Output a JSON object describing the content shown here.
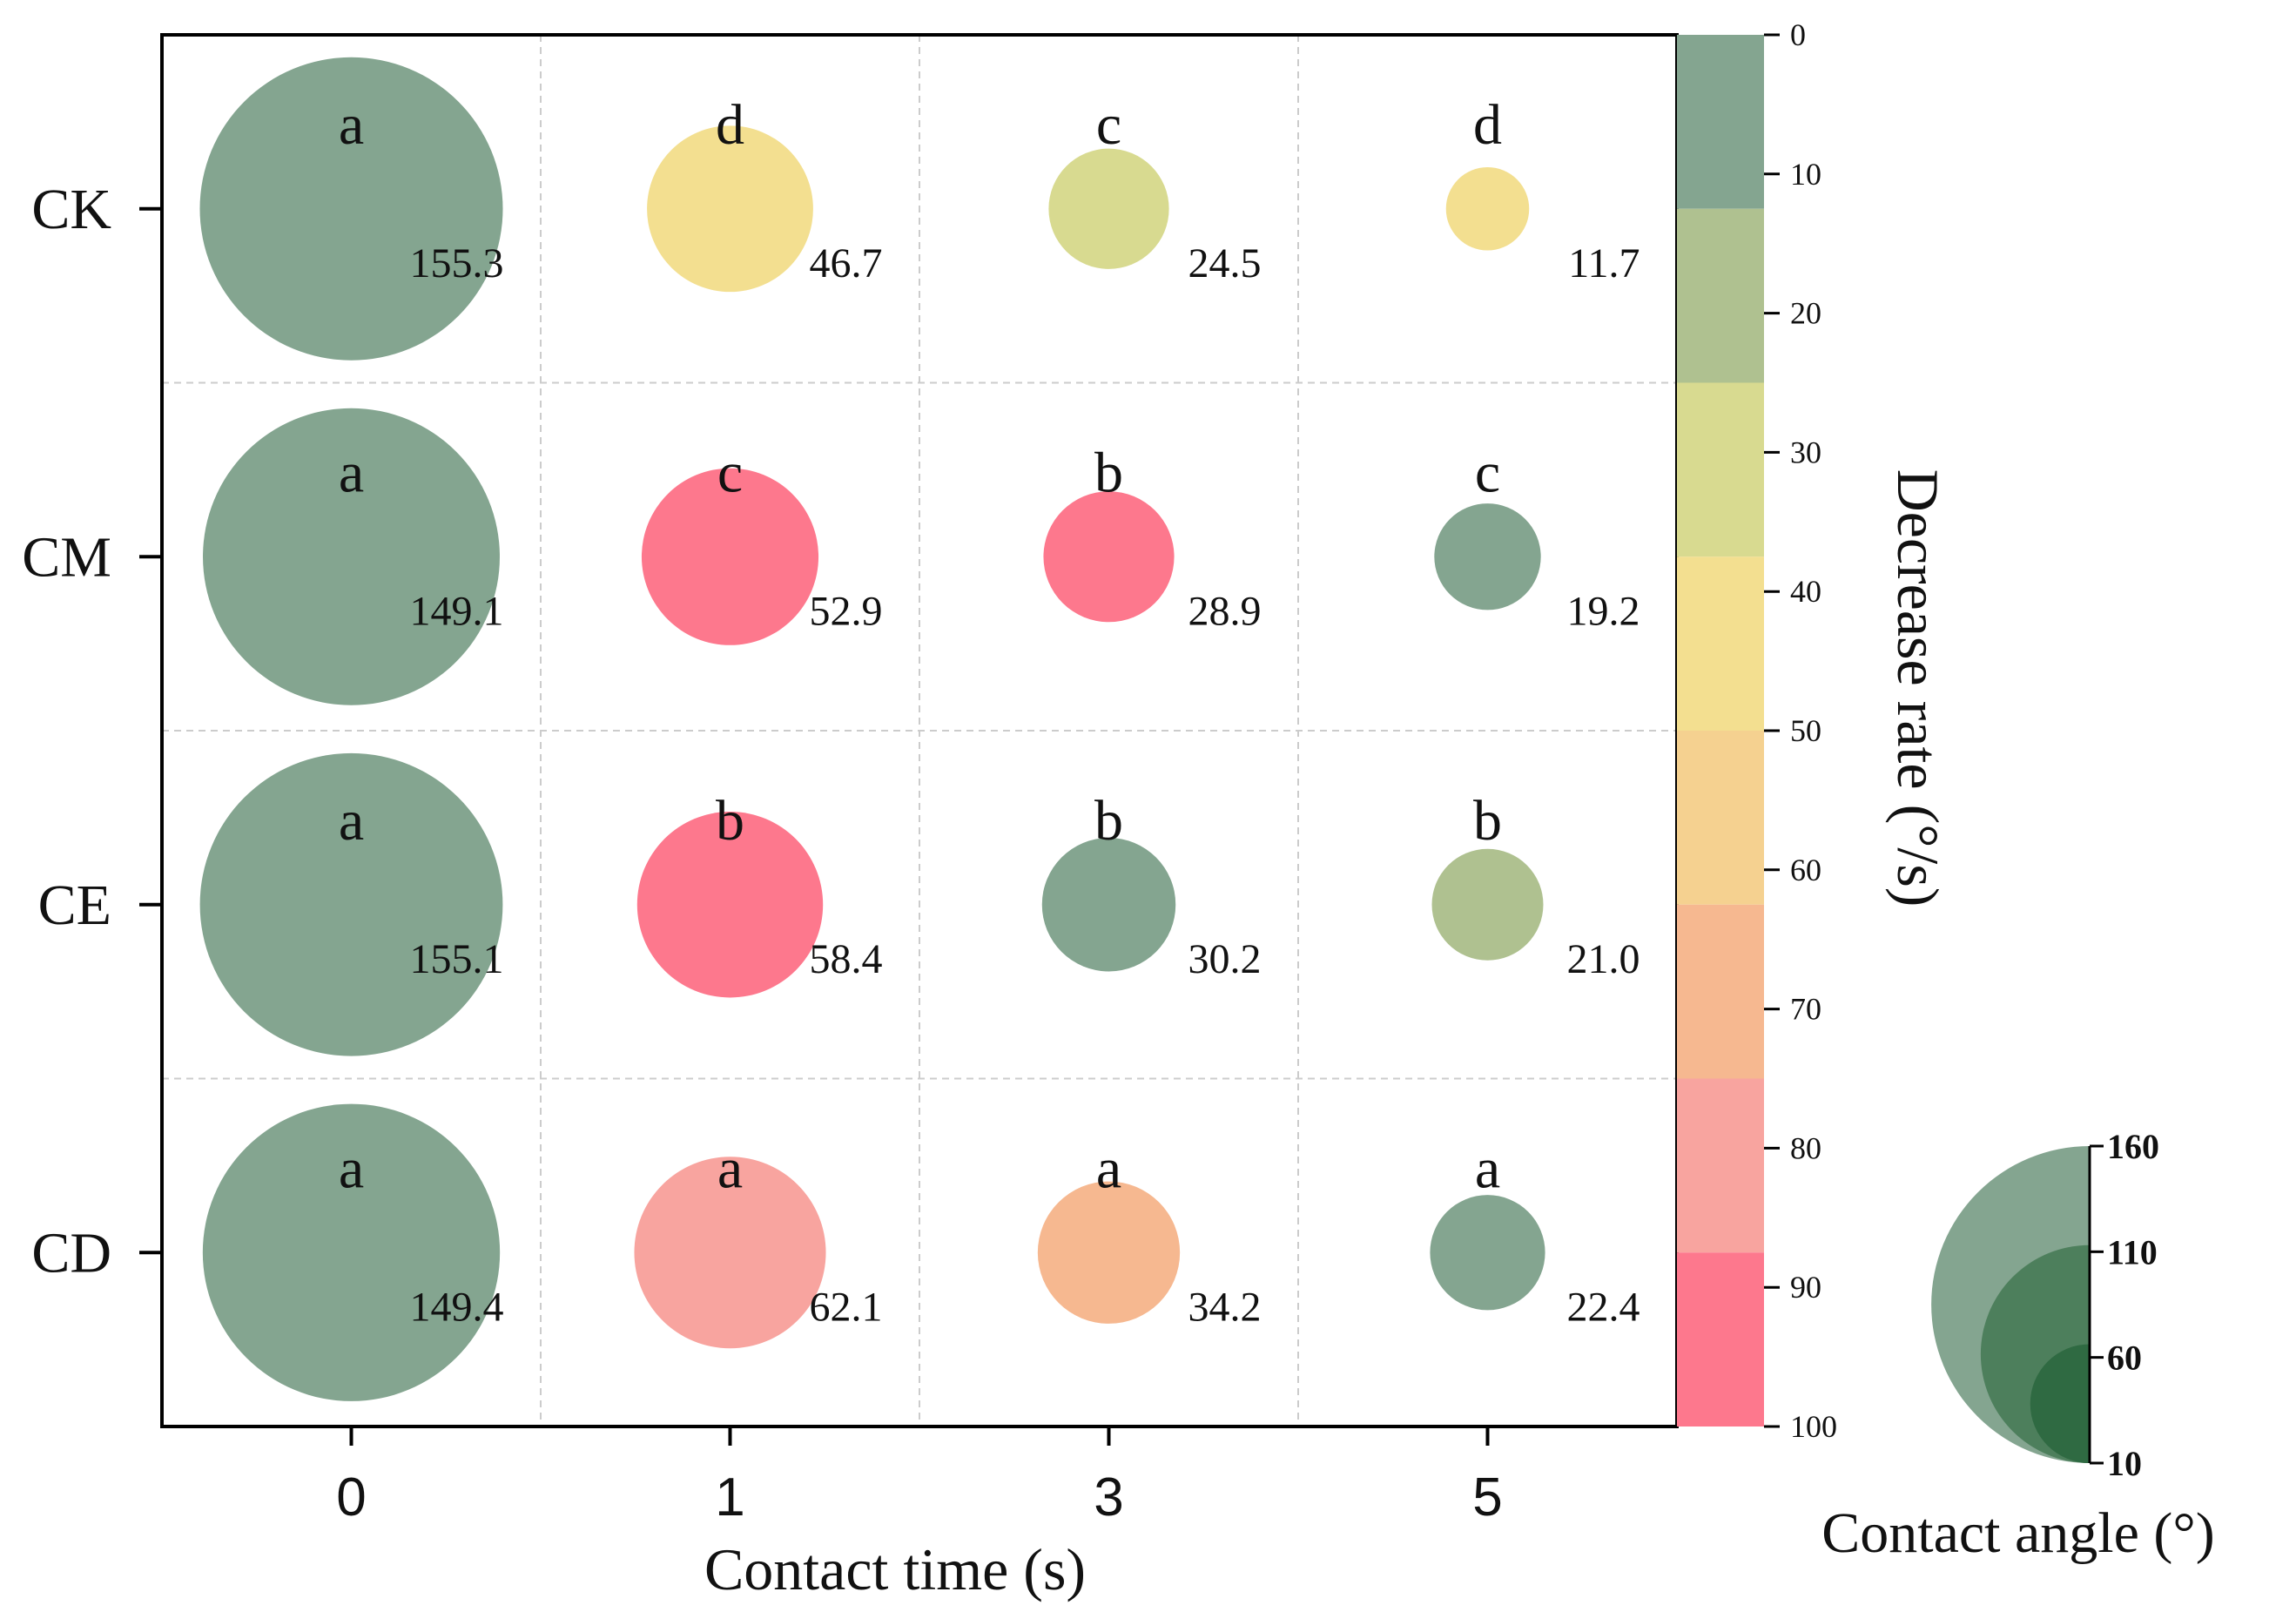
{
  "chart_data": {
    "type": "bubble-matrix",
    "xlabel": "Contact time (s)",
    "x_categories": [
      "0",
      "1",
      "3",
      "5"
    ],
    "y_categories": [
      "CK",
      "CM",
      "CE",
      "CD"
    ],
    "size_variable": "Contact angle (°)",
    "color_variable": "Decrease rate (°/s)",
    "cells": [
      {
        "row": "CK",
        "col": "0",
        "contact_angle": "155.3",
        "letter": "a",
        "decrease_rate": 5
      },
      {
        "row": "CK",
        "col": "1",
        "contact_angle": "46.7",
        "letter": "d",
        "decrease_rate": 45
      },
      {
        "row": "CK",
        "col": "3",
        "contact_angle": "24.5",
        "letter": "c",
        "decrease_rate": 35
      },
      {
        "row": "CK",
        "col": "5",
        "contact_angle": "11.7",
        "letter": "d",
        "decrease_rate": 45
      },
      {
        "row": "CM",
        "col": "0",
        "contact_angle": "149.1",
        "letter": "a",
        "decrease_rate": 5
      },
      {
        "row": "CM",
        "col": "1",
        "contact_angle": "52.9",
        "letter": "c",
        "decrease_rate": 95
      },
      {
        "row": "CM",
        "col": "3",
        "contact_angle": "28.9",
        "letter": "b",
        "decrease_rate": 95
      },
      {
        "row": "CM",
        "col": "5",
        "contact_angle": "19.2",
        "letter": "c",
        "decrease_rate": 5
      },
      {
        "row": "CE",
        "col": "0",
        "contact_angle": "155.1",
        "letter": "a",
        "decrease_rate": 5
      },
      {
        "row": "CE",
        "col": "1",
        "contact_angle": "58.4",
        "letter": "b",
        "decrease_rate": 95
      },
      {
        "row": "CE",
        "col": "3",
        "contact_angle": "30.2",
        "letter": "b",
        "decrease_rate": 5
      },
      {
        "row": "CE",
        "col": "5",
        "contact_angle": "21.0",
        "letter": "b",
        "decrease_rate": 15
      },
      {
        "row": "CD",
        "col": "0",
        "contact_angle": "149.4",
        "letter": "a",
        "decrease_rate": 5
      },
      {
        "row": "CD",
        "col": "1",
        "contact_angle": "62.1",
        "letter": "a",
        "decrease_rate": 85
      },
      {
        "row": "CD",
        "col": "3",
        "contact_angle": "34.2",
        "letter": "a",
        "decrease_rate": 65
      },
      {
        "row": "CD",
        "col": "5",
        "contact_angle": "22.4",
        "letter": "a",
        "decrease_rate": 5
      }
    ],
    "colorbar": {
      "label": "Decrease rate (°/s)",
      "range": [
        0,
        100
      ],
      "ticks": [
        "0",
        "10",
        "20",
        "30",
        "40",
        "50",
        "60",
        "70",
        "80",
        "90",
        "100"
      ],
      "bands": [
        {
          "from": 0,
          "to": 12.5,
          "color": "#84a590"
        },
        {
          "from": 12.5,
          "to": 25,
          "color": "#afc190"
        },
        {
          "from": 25,
          "to": 37.5,
          "color": "#d8da90"
        },
        {
          "from": 37.5,
          "to": 50,
          "color": "#f3df90"
        },
        {
          "from": 50,
          "to": 62.5,
          "color": "#f5d190"
        },
        {
          "from": 62.5,
          "to": 75,
          "color": "#f6b890"
        },
        {
          "from": 75,
          "to": 87.5,
          "color": "#f8a49f"
        },
        {
          "from": 87.5,
          "to": 100,
          "color": "#fd788d"
        }
      ]
    },
    "size_legend": {
      "title": "Contact angle (°)",
      "ticks": [
        "160",
        "110",
        "60",
        "10"
      ],
      "values": [
        160,
        110,
        60,
        10
      ],
      "colors": [
        "#84a590",
        "#4d7f5c",
        "#2f6a42"
      ]
    }
  }
}
